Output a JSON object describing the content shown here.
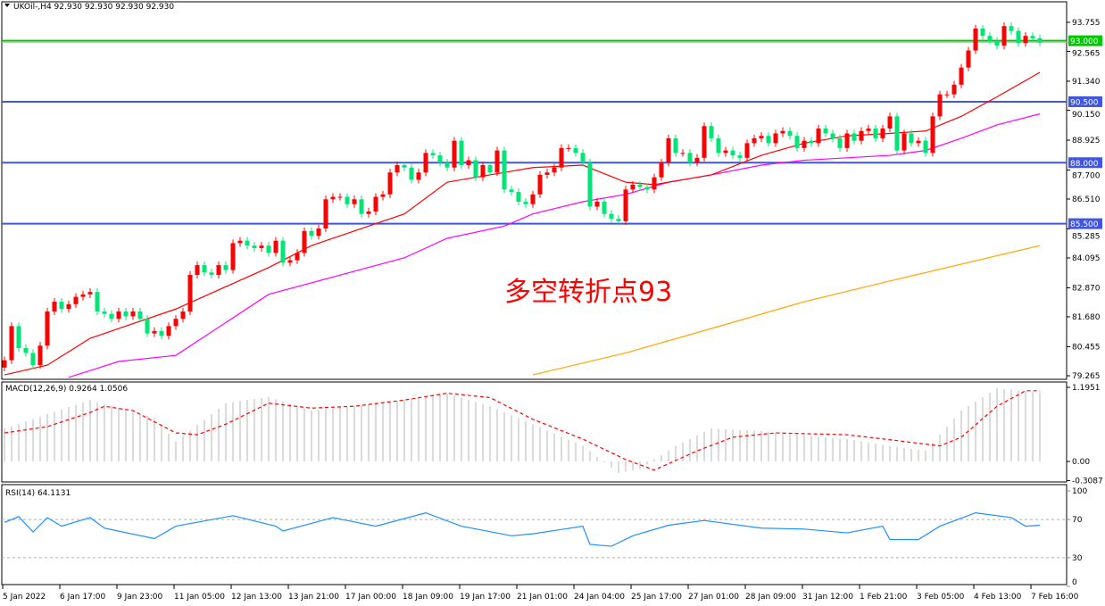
{
  "header": {
    "title": "UKOil-,H4  92.930 92.930 92.930 92.930"
  },
  "annotation": "多空转折点93",
  "colors": {
    "bull": "#ff0000",
    "bear": "#00e676",
    "ma_fast": "#ff0000",
    "ma_mid": "#ff00ff",
    "ma_slow": "#ffa500",
    "level_green": "#00c800",
    "level_blue": "#4055e0",
    "macd_hist": "#c0c0c0",
    "macd_signal": "#ff0000",
    "rsi": "#1e90ff"
  },
  "chart_data": {
    "type": "candlestick",
    "symbol": "UKOil-",
    "timeframe": "H4",
    "ylim": [
      79.265,
      93.755
    ],
    "price_ticks": [
      "93.755",
      "92.565",
      "91.340",
      "90.150",
      "88.925",
      "87.700",
      "86.510",
      "85.285",
      "84.095",
      "82.870",
      "81.680",
      "80.455",
      "79.265"
    ],
    "levels": [
      {
        "value": 93.0,
        "label": "93.000",
        "color": "green"
      },
      {
        "value": 90.5,
        "label": "90.500",
        "color": "blue"
      },
      {
        "value": 88.0,
        "label": "88.000",
        "color": "blue"
      },
      {
        "value": 85.5,
        "label": "85.500",
        "color": "blue"
      }
    ],
    "bid": 92.93,
    "closes": [
      79.9,
      81.3,
      80.4,
      80.2,
      79.7,
      80.5,
      81.9,
      82.3,
      82.0,
      82.2,
      82.5,
      82.6,
      82.7,
      81.9,
      81.8,
      81.6,
      81.9,
      81.7,
      81.9,
      81.6,
      81.0,
      81.1,
      80.9,
      81.3,
      81.6,
      81.9,
      83.4,
      83.8,
      83.5,
      83.4,
      83.8,
      83.6,
      84.7,
      84.8,
      84.6,
      84.5,
      84.6,
      84.3,
      84.8,
      83.9,
      84.0,
      84.3,
      85.2,
      85.0,
      85.3,
      86.5,
      86.6,
      86.6,
      86.3,
      86.5,
      85.9,
      86.0,
      86.6,
      86.7,
      87.6,
      87.9,
      87.8,
      87.3,
      87.6,
      88.4,
      88.3,
      88.0,
      87.8,
      88.9,
      87.9,
      88.1,
      87.4,
      87.9,
      87.6,
      88.5,
      86.9,
      86.8,
      86.4,
      86.3,
      86.7,
      87.5,
      87.6,
      87.8,
      88.6,
      88.6,
      88.4,
      88.0,
      86.2,
      86.4,
      85.9,
      85.7,
      85.6,
      86.9,
      87.1,
      87.0,
      86.9,
      87.4,
      88.0,
      89.0,
      88.4,
      88.4,
      88.0,
      88.2,
      89.5,
      89.0,
      88.4,
      88.5,
      88.3,
      88.2,
      88.8,
      89.0,
      89.1,
      88.8,
      89.2,
      89.3,
      89.1,
      88.6,
      88.9,
      88.8,
      89.4,
      89.2,
      89.0,
      88.6,
      89.2,
      88.9,
      89.3,
      89.4,
      89.0,
      89.4,
      89.9,
      88.5,
      89.2,
      88.8,
      88.9,
      88.4,
      89.9,
      90.8,
      90.8,
      91.2,
      91.9,
      92.6,
      93.5,
      93.2,
      93.0,
      92.8,
      93.6,
      93.4,
      92.9,
      93.2,
      93.1,
      92.93
    ],
    "ma_fast": [
      [
        0,
        79.3
      ],
      [
        6,
        79.7
      ],
      [
        12,
        80.8
      ],
      [
        24,
        82.0
      ],
      [
        37,
        83.7
      ],
      [
        43,
        84.6
      ],
      [
        49,
        85.2
      ],
      [
        56,
        85.9
      ],
      [
        62,
        87.2
      ],
      [
        68,
        87.5
      ],
      [
        74,
        87.8
      ],
      [
        81,
        87.9
      ],
      [
        87,
        87.2
      ],
      [
        91,
        87.1
      ],
      [
        99,
        87.5
      ],
      [
        106,
        88.3
      ],
      [
        112,
        88.8
      ],
      [
        118,
        89.1
      ],
      [
        124,
        89.2
      ],
      [
        129,
        89.3
      ],
      [
        134,
        89.9
      ],
      [
        139,
        90.7
      ],
      [
        145,
        91.7
      ]
    ],
    "ma_mid": [
      [
        9,
        79.2
      ],
      [
        16,
        79.85
      ],
      [
        24,
        80.1
      ],
      [
        37,
        82.6
      ],
      [
        56,
        84.1
      ],
      [
        62,
        84.9
      ],
      [
        70,
        85.4
      ],
      [
        74,
        85.9
      ],
      [
        81,
        86.4
      ],
      [
        87,
        86.7
      ],
      [
        93,
        87.2
      ],
      [
        99,
        87.5
      ],
      [
        106,
        87.9
      ],
      [
        112,
        88.1
      ],
      [
        118,
        88.2
      ],
      [
        124,
        88.3
      ],
      [
        129,
        88.5
      ],
      [
        134,
        89.0
      ],
      [
        139,
        89.55
      ],
      [
        145,
        90.0
      ]
    ],
    "ma_slow": [
      [
        74,
        79.3
      ],
      [
        87,
        80.2
      ],
      [
        99,
        81.2
      ],
      [
        112,
        82.3
      ],
      [
        124,
        83.15
      ],
      [
        145,
        84.6
      ]
    ],
    "time_labels": [
      "5 Jan 2022",
      "6 Jan 17:00",
      "9 Jan 23:00",
      "11 Jan 05:00",
      "12 Jan 13:00",
      "13 Jan 21:00",
      "17 Jan 00:00",
      "18 Jan 09:00",
      "19 Jan 17:00",
      "21 Jan 01:00",
      "24 Jan 04:00",
      "25 Jan 17:00",
      "27 Jan 01:00",
      "28 Jan 09:00",
      "31 Jan 12:00",
      "1 Feb 21:00",
      "3 Feb 05:00",
      "4 Feb 13:00",
      "7 Feb 16:00"
    ],
    "macd": {
      "title": "MACD(12,26,9) 0.9264 1.0506",
      "ylim": [
        -0.3087,
        1.1951
      ],
      "ticks": [
        "1.1951",
        "0.00",
        "-0.3087"
      ],
      "main": [
        [
          0,
          0.53
        ],
        [
          12,
          0.99
        ],
        [
          21,
          0.7
        ],
        [
          24,
          0.32
        ],
        [
          31,
          0.94
        ],
        [
          37,
          1.04
        ],
        [
          43,
          0.82
        ],
        [
          49,
          0.89
        ],
        [
          56,
          0.99
        ],
        [
          62,
          1.1
        ],
        [
          68,
          0.89
        ],
        [
          74,
          0.6
        ],
        [
          81,
          0.25
        ],
        [
          86,
          -0.19
        ],
        [
          89,
          -0.12
        ],
        [
          94,
          0.25
        ],
        [
          99,
          0.53
        ],
        [
          106,
          0.49
        ],
        [
          112,
          0.42
        ],
        [
          118,
          0.36
        ],
        [
          124,
          0.25
        ],
        [
          129,
          0.17
        ],
        [
          134,
          0.82
        ],
        [
          139,
          1.18
        ],
        [
          145,
          1.11
        ]
      ],
      "signal": [
        [
          0,
          0.46
        ],
        [
          6,
          0.56
        ],
        [
          12,
          0.79
        ],
        [
          14,
          0.89
        ],
        [
          18,
          0.82
        ],
        [
          24,
          0.46
        ],
        [
          27,
          0.43
        ],
        [
          31,
          0.6
        ],
        [
          37,
          0.94
        ],
        [
          43,
          0.86
        ],
        [
          49,
          0.89
        ],
        [
          56,
          0.99
        ],
        [
          62,
          1.1
        ],
        [
          68,
          1.03
        ],
        [
          74,
          0.68
        ],
        [
          81,
          0.36
        ],
        [
          87,
          0.03
        ],
        [
          91,
          -0.14
        ],
        [
          97,
          0.17
        ],
        [
          102,
          0.39
        ],
        [
          108,
          0.46
        ],
        [
          118,
          0.43
        ],
        [
          124,
          0.35
        ],
        [
          131,
          0.25
        ],
        [
          134,
          0.39
        ],
        [
          139,
          0.89
        ],
        [
          143,
          1.14
        ],
        [
          145,
          1.14
        ]
      ]
    },
    "rsi": {
      "title": "RSI(14) 64.1131",
      "ylim": [
        0,
        100
      ],
      "ticks": [
        "100",
        "70",
        "30",
        "0"
      ],
      "levels": [
        70,
        30
      ],
      "values": [
        [
          0,
          67
        ],
        [
          2,
          73
        ],
        [
          4,
          57
        ],
        [
          6,
          72
        ],
        [
          8,
          63
        ],
        [
          12,
          72
        ],
        [
          14,
          61
        ],
        [
          21,
          50
        ],
        [
          24,
          63
        ],
        [
          32,
          74
        ],
        [
          38,
          63
        ],
        [
          39,
          58
        ],
        [
          46,
          72
        ],
        [
          52,
          63
        ],
        [
          59,
          77
        ],
        [
          64,
          63
        ],
        [
          71,
          53
        ],
        [
          74,
          55
        ],
        [
          81,
          63
        ],
        [
          82,
          44
        ],
        [
          85,
          42
        ],
        [
          88,
          53
        ],
        [
          93,
          64
        ],
        [
          98,
          69
        ],
        [
          106,
          61
        ],
        [
          112,
          60
        ],
        [
          118,
          56
        ],
        [
          123,
          63
        ],
        [
          124,
          49
        ],
        [
          128,
          49
        ],
        [
          131,
          63
        ],
        [
          136,
          77
        ],
        [
          141,
          72
        ],
        [
          143,
          63
        ],
        [
          145,
          64
        ]
      ]
    }
  }
}
